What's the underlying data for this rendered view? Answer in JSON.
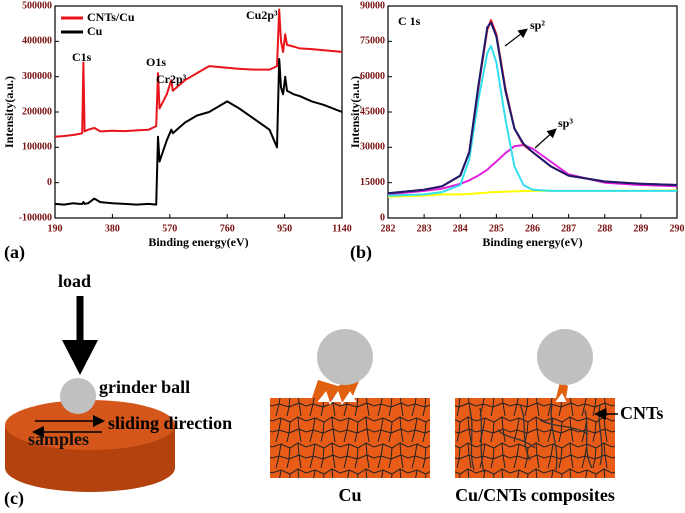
{
  "chart_data": [
    {
      "type": "line",
      "ylabel": "Intensity(a.u.)",
      "xlabel": "Binding energy(eV)",
      "panel": "(a)",
      "xlim": [
        190,
        1140
      ],
      "xticks": [
        190,
        380,
        570,
        760,
        950,
        1140
      ],
      "ylim": [
        -100000,
        500000
      ],
      "yticks": [
        -100000,
        0,
        100000,
        200000,
        300000,
        400000,
        500000
      ],
      "legend": "upper left",
      "annotations": [
        "C1s",
        "O1s",
        "Cr2p³",
        "Cu2p³"
      ],
      "x": [
        190,
        220,
        250,
        270,
        280,
        284,
        288,
        300,
        320,
        340,
        380,
        420,
        460,
        500,
        525,
        531,
        536,
        560,
        575,
        580,
        620,
        660,
        700,
        760,
        800,
        850,
        900,
        925,
        932,
        938,
        945,
        952,
        958,
        980,
        1000,
        1040,
        1080,
        1140
      ],
      "series": [
        {
          "name": "CNTs/Cu",
          "color": "#e8141c",
          "values": [
            130000,
            132000,
            135000,
            138000,
            140000,
            340000,
            145000,
            150000,
            155000,
            145000,
            147000,
            146000,
            148000,
            150000,
            160000,
            310000,
            210000,
            250000,
            290000,
            260000,
            290000,
            310000,
            330000,
            325000,
            322000,
            320000,
            320000,
            330000,
            490000,
            400000,
            370000,
            420000,
            390000,
            385000,
            380000,
            378000,
            375000,
            370000
          ]
        },
        {
          "name": "Cu",
          "color": "#000000",
          "values": [
            -60000,
            -62000,
            -58000,
            -60000,
            -60000,
            -55000,
            -60000,
            -58000,
            -45000,
            -55000,
            -58000,
            -60000,
            -62000,
            -60000,
            -62000,
            130000,
            60000,
            120000,
            150000,
            140000,
            170000,
            190000,
            200000,
            230000,
            210000,
            180000,
            150000,
            100000,
            350000,
            270000,
            250000,
            300000,
            260000,
            250000,
            245000,
            230000,
            220000,
            200000
          ]
        }
      ]
    },
    {
      "type": "line",
      "ylabel": "Intensity(a.u.)",
      "xlabel": "Binding energy(eV)",
      "panel": "(b)",
      "xlim": [
        282,
        290
      ],
      "xticks": [
        282,
        283,
        284,
        285,
        286,
        287,
        288,
        289,
        290
      ],
      "ylim": [
        0,
        90000
      ],
      "yticks": [
        0,
        15000,
        30000,
        45000,
        60000,
        75000,
        90000
      ],
      "annotations": [
        "C 1s",
        "sp²",
        "sp³"
      ],
      "x": [
        282,
        283,
        283.5,
        284,
        284.25,
        284.5,
        284.75,
        284.85,
        285,
        285.25,
        285.5,
        285.75,
        286,
        286.5,
        287,
        288,
        289,
        290
      ],
      "series": [
        {
          "color": "#ffff00",
          "values": [
            9000,
            9500,
            10000,
            10000,
            10200,
            10500,
            10800,
            11000,
            11000,
            11200,
            11300,
            11400,
            11500,
            11500,
            11500,
            11500,
            11600,
            11700
          ]
        },
        {
          "color": "#e020e0",
          "values": [
            10000,
            11500,
            12500,
            14500,
            16000,
            18000,
            20500,
            22000,
            24000,
            27500,
            30500,
            31000,
            29500,
            24000,
            18500,
            15000,
            14000,
            13500
          ]
        },
        {
          "color": "#30e0f0",
          "values": [
            9500,
            10000,
            11000,
            14000,
            25000,
            50000,
            70000,
            73000,
            66000,
            42000,
            22000,
            14000,
            12000,
            11500,
            11500,
            11500,
            11500,
            11500
          ]
        },
        {
          "color": "#e8141c",
          "values": [
            10500,
            12000,
            13500,
            18000,
            28000,
            55000,
            80000,
            84000,
            78000,
            55000,
            38000,
            31000,
            28000,
            22000,
            18000,
            15500,
            14500,
            14000
          ]
        },
        {
          "color": "#1a1a6e",
          "values": [
            10500,
            12000,
            13500,
            18000,
            28000,
            56000,
            81000,
            83000,
            77000,
            54000,
            38000,
            31500,
            28000,
            22000,
            18000,
            15500,
            14500,
            14000
          ]
        }
      ]
    }
  ],
  "diagram": {
    "panel": "(c)",
    "load": "load",
    "ball": "grinder ball",
    "sliding": "sliding direction",
    "samples": "samples",
    "cu": "Cu",
    "composite": "Cu/CNTs composites",
    "cnts": "CNTs"
  }
}
